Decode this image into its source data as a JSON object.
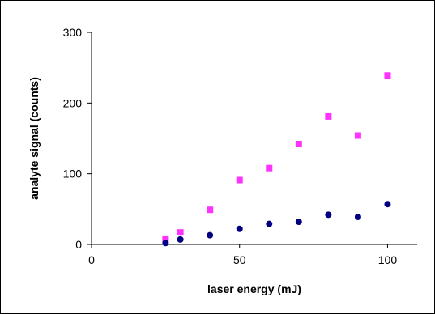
{
  "chart_data": {
    "type": "scatter",
    "xlabel": "laser energy (mJ)",
    "ylabel": "analyte signal (counts)",
    "xlim": [
      0,
      110
    ],
    "ylim": [
      0,
      300
    ],
    "x_ticks": [
      0,
      50,
      100
    ],
    "y_ticks": [
      0,
      100,
      200,
      300
    ],
    "x_tick_labels": [
      "0",
      "50",
      "100"
    ],
    "y_tick_labels": [
      "0",
      "100",
      "200",
      "300"
    ],
    "grid": false,
    "legend": "none",
    "series": [
      {
        "marker": "square",
        "color": "#FF33FF",
        "points": [
          [
            25,
            7
          ],
          [
            30,
            17
          ],
          [
            40,
            49
          ],
          [
            50,
            91
          ],
          [
            60,
            108
          ],
          [
            70,
            142
          ],
          [
            80,
            181
          ],
          [
            90,
            154
          ],
          [
            100,
            239
          ]
        ]
      },
      {
        "marker": "circle",
        "color": "#000080",
        "points": [
          [
            25,
            2
          ],
          [
            30,
            7
          ],
          [
            40,
            13
          ],
          [
            50,
            22
          ],
          [
            60,
            29
          ],
          [
            70,
            32
          ],
          [
            80,
            42
          ],
          [
            90,
            39
          ],
          [
            100,
            57
          ]
        ]
      }
    ]
  }
}
